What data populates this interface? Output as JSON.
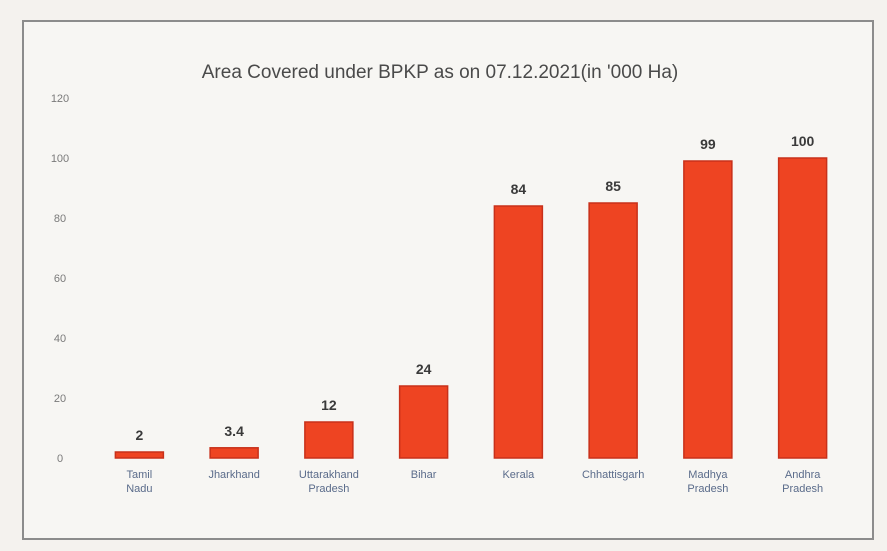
{
  "chart_data": {
    "type": "bar",
    "title": "Area Covered under BPKP as on 07.12.2021(in '000 Ha)",
    "categories": [
      "Tamil Nadu",
      "Jharkhand",
      "Uttarakhand Pradesh",
      "Bihar",
      "Kerala",
      "Chhattisgarh",
      "Madhya Pradesh",
      "Andhra Pradesh"
    ],
    "values": [
      2,
      3.4,
      12,
      24,
      84,
      85,
      99,
      100
    ],
    "data_labels": [
      "2",
      "3.4",
      "12",
      "24",
      "84",
      "85",
      "99",
      "100"
    ],
    "y_ticks": [
      "0",
      "20",
      "40",
      "60",
      "80",
      "100",
      "120"
    ],
    "ylim": [
      0,
      120
    ],
    "bar_color": "#ee4422",
    "bar_edge_color": "#c8301a",
    "grid": false,
    "legend": "none"
  }
}
